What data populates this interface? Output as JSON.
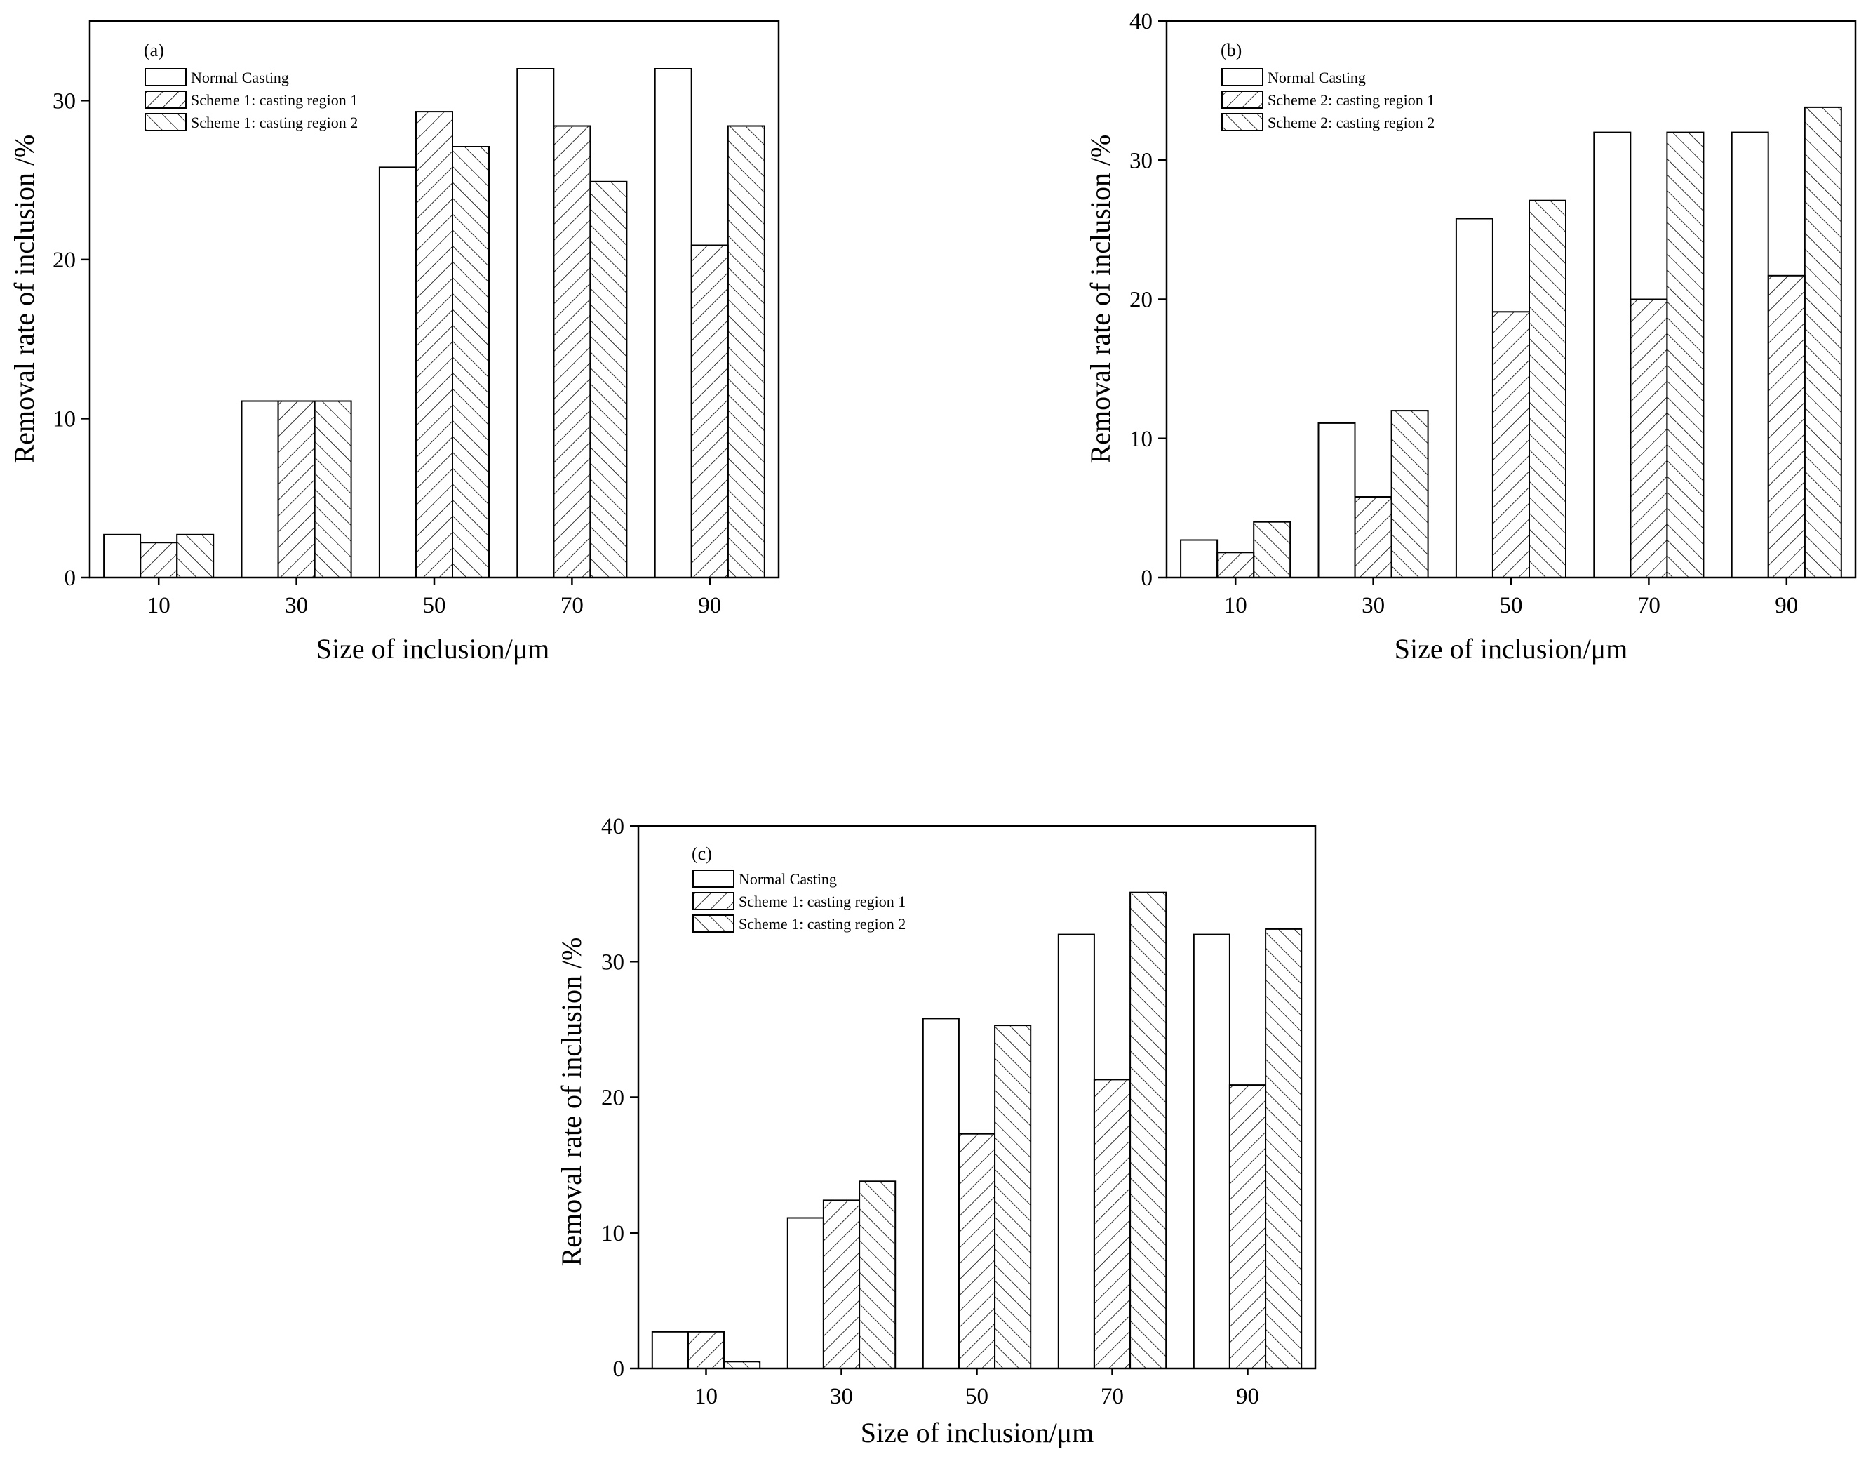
{
  "chart_data": [
    {
      "type": "bar",
      "panel_label": "(a)",
      "categories": [
        "10",
        "30",
        "50",
        "70",
        "90"
      ],
      "series": [
        {
          "name": "Normal Casting",
          "pattern": "none",
          "values": [
            2.7,
            11.1,
            25.8,
            32.0,
            32.0
          ]
        },
        {
          "name": "Scheme 1: casting region 1",
          "pattern": "forward",
          "values": [
            2.2,
            11.1,
            29.3,
            28.4,
            20.9
          ]
        },
        {
          "name": "Scheme 1: casting region 2",
          "pattern": "backward",
          "values": [
            2.7,
            11.1,
            27.1,
            24.9,
            28.4
          ]
        }
      ],
      "xlabel": "Size of inclusion/μm",
      "ylabel": "Removal rate of inclusion /%",
      "ylim": [
        0,
        35
      ],
      "yticks": [
        0,
        10,
        20,
        30
      ],
      "ytick_labels": [
        "0",
        "10",
        "20",
        "30"
      ],
      "legend_position": "top-left",
      "grid": false
    },
    {
      "type": "bar",
      "panel_label": "(b)",
      "categories": [
        "10",
        "30",
        "50",
        "70",
        "90"
      ],
      "series": [
        {
          "name": "Normal Casting",
          "pattern": "none",
          "values": [
            2.7,
            11.1,
            25.8,
            32.0,
            32.0
          ]
        },
        {
          "name": "Scheme 2: casting region 1",
          "pattern": "forward",
          "values": [
            1.8,
            5.8,
            19.1,
            20.0,
            21.7
          ]
        },
        {
          "name": "Scheme 2: casting region 2",
          "pattern": "backward",
          "values": [
            4.0,
            12.0,
            27.1,
            32.0,
            33.8
          ]
        }
      ],
      "xlabel": "Size of inclusion/μm",
      "ylabel": "Removal rate of inclusion /%",
      "ylim": [
        0,
        40
      ],
      "yticks": [
        0,
        10,
        20,
        30,
        40
      ],
      "ytick_labels": [
        "0",
        "10",
        "20",
        "30",
        "40"
      ],
      "legend_position": "top-left",
      "grid": false
    },
    {
      "type": "bar",
      "panel_label": "(c)",
      "categories": [
        "10",
        "30",
        "50",
        "70",
        "90"
      ],
      "series": [
        {
          "name": "Normal Casting",
          "pattern": "none",
          "values": [
            2.7,
            11.1,
            25.8,
            32.0,
            32.0
          ]
        },
        {
          "name": "Scheme 1: casting region 1",
          "pattern": "forward",
          "values": [
            2.7,
            12.4,
            17.3,
            21.3,
            20.9
          ]
        },
        {
          "name": "Scheme 1: casting region 2",
          "pattern": "backward",
          "values": [
            0.5,
            13.8,
            25.3,
            35.1,
            32.4
          ]
        }
      ],
      "xlabel": "Size of inclusion/μm",
      "ylabel": "Removal rate of inclusion /%",
      "ylim": [
        0,
        40
      ],
      "yticks": [
        0,
        10,
        20,
        30,
        40
      ],
      "ytick_labels": [
        "0",
        "10",
        "20",
        "30",
        "40"
      ],
      "legend_position": "top-left",
      "grid": false
    }
  ]
}
